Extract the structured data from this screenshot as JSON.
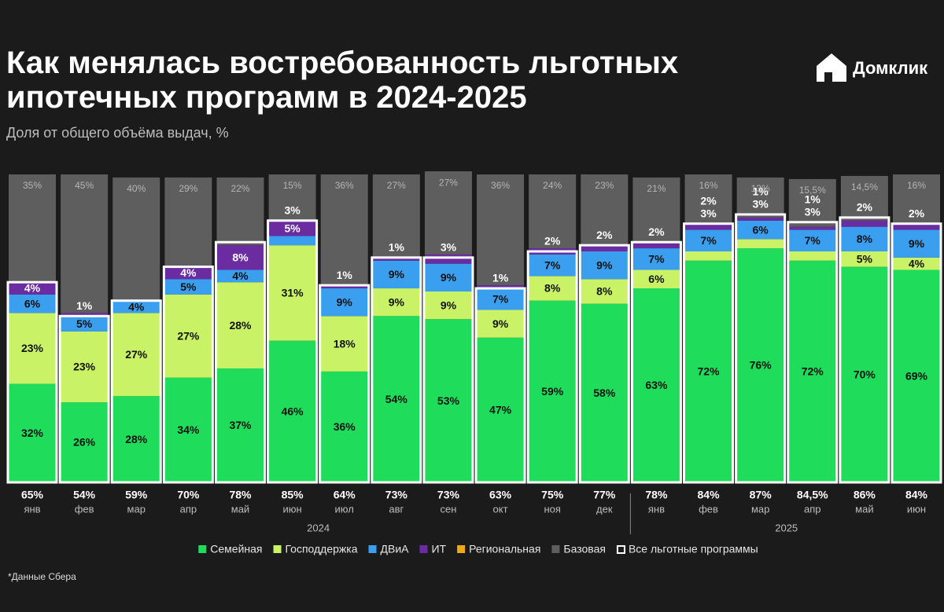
{
  "brand": "Домклик",
  "footnote": "*Данные Сбера",
  "chart_data": {
    "type": "stacked-bar",
    "title": "Как менялась востребованность льготных ипотечных программ в 2024-2025",
    "subtitle": "Доля от общего объёма выдач, %",
    "year_groups": [
      {
        "label": "2024",
        "categories": [
          "янв",
          "фев",
          "мар",
          "апр",
          "май",
          "июн",
          "июл",
          "авг",
          "сен",
          "окт",
          "ноя",
          "дек"
        ]
      },
      {
        "label": "2025",
        "categories": [
          "янв",
          "фев",
          "мар",
          "апр",
          "май",
          "июн"
        ]
      }
    ],
    "ylim": [
      0,
      100
    ],
    "series": [
      {
        "name": "Семейная",
        "color": "#1fdc5a",
        "values": [
          32,
          26,
          28,
          34,
          37,
          46,
          36,
          54,
          53,
          47,
          59,
          58,
          63,
          72,
          76,
          72,
          70,
          69
        ],
        "value_labels": [
          "32%",
          "26%",
          "28%",
          "34%",
          "37%",
          "46%",
          "36%",
          "54%",
          "53%",
          "47%",
          "59%",
          "58%",
          "63%",
          "72%",
          "76%",
          "72%",
          "70%",
          "69%"
        ]
      },
      {
        "name": "Господдержка",
        "color": "#c9f266",
        "values": [
          23,
          23,
          27,
          27,
          28,
          31,
          18,
          9,
          9,
          9,
          8,
          8,
          6,
          3,
          3,
          3,
          5,
          4
        ],
        "value_labels": [
          "23%",
          "23%",
          "27%",
          "27%",
          "28%",
          "31%",
          "18%",
          "9%",
          "9%",
          "9%",
          "8%",
          "8%",
          "6%",
          "3%",
          "3%",
          "3%",
          "5%",
          "4%"
        ]
      },
      {
        "name": "ДВиА",
        "color": "#3b9ff0",
        "values": [
          6,
          5,
          4,
          5,
          4,
          3,
          9,
          9,
          9,
          7,
          7,
          9,
          7,
          7,
          6,
          7,
          8,
          9
        ],
        "value_labels": [
          "6%",
          "5%",
          "4%",
          "5%",
          "4%",
          "3%",
          "9%",
          "9%",
          "9%",
          "7%",
          "7%",
          "9%",
          "7%",
          "7%",
          "6%",
          "7%",
          "8%",
          "9%"
        ]
      },
      {
        "name": "ИТ",
        "color": "#6a2ca0",
        "values": [
          4,
          1,
          null,
          4,
          8,
          5,
          1,
          1,
          3,
          1,
          2,
          2,
          2,
          2,
          1,
          1,
          2,
          2
        ],
        "value_labels": [
          "4%",
          "1%",
          null,
          "4%",
          "8%",
          "5%",
          "1%",
          "1%",
          "3%",
          "1%",
          "2%",
          "2%",
          "2%",
          "2%",
          "1%",
          "1%",
          "2%",
          "2%"
        ]
      },
      {
        "name": "Региональная",
        "color": "#f0a818",
        "values": [
          null,
          null,
          null,
          null,
          null,
          null,
          null,
          null,
          null,
          null,
          null,
          null,
          null,
          null,
          null,
          null,
          null,
          null
        ],
        "value_labels": [
          null,
          null,
          null,
          null,
          null,
          null,
          null,
          null,
          null,
          null,
          null,
          null,
          null,
          null,
          null,
          null,
          null,
          null
        ]
      },
      {
        "name": "Базовая",
        "color": "#5e5e5e",
        "values": [
          35,
          45,
          40,
          29,
          22,
          15,
          36,
          27,
          27,
          36,
          24,
          23,
          21,
          16,
          13,
          15.5,
          14.5,
          16
        ],
        "value_labels": [
          "35%",
          "45%",
          "40%",
          "29%",
          "22%",
          "15%",
          "36%",
          "27%",
          "27%",
          "36%",
          "24%",
          "23%",
          "21%",
          "16%",
          "13%",
          "15,5%",
          "14,5%",
          "16%"
        ]
      }
    ],
    "total": {
      "name": "Все льготные программы",
      "color": "#ffffff",
      "values": [
        65,
        54,
        59,
        70,
        78,
        85,
        64,
        73,
        73,
        63,
        75,
        77,
        78,
        84,
        87,
        84.5,
        86,
        84
      ],
      "value_labels": [
        "65%",
        "54%",
        "59%",
        "70%",
        "78%",
        "85%",
        "64%",
        "73%",
        "73%",
        "63%",
        "75%",
        "77%",
        "78%",
        "84%",
        "87%",
        "84,5%",
        "86%",
        "84%"
      ]
    }
  }
}
